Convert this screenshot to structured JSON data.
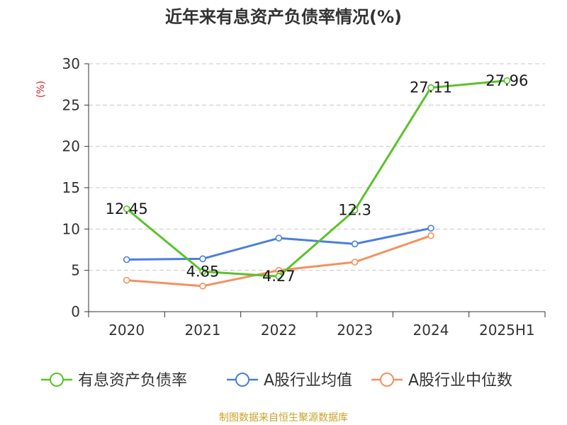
{
  "chart_data": {
    "type": "line",
    "title": "近年来有息资产负债率情况(%)",
    "ylabel": "(%)",
    "xlabel": "",
    "categories": [
      "2020",
      "2021",
      "2022",
      "2023",
      "2024",
      "2025H1"
    ],
    "ylim": [
      0,
      30
    ],
    "yticks": [
      0,
      5,
      10,
      15,
      20,
      25,
      30
    ],
    "grid": true,
    "legend_position": "bottom",
    "series": [
      {
        "name": "有息资产负债率",
        "color": "#5ac229",
        "values": [
          12.45,
          4.85,
          4.27,
          12.3,
          27.11,
          27.96
        ],
        "labels": [
          "12.45",
          "4.85",
          "4.27",
          "12.3",
          "27.11",
          "27.96"
        ]
      },
      {
        "name": "A股行业均值",
        "color": "#4a7fdc",
        "values": [
          6.3,
          6.4,
          8.9,
          8.2,
          10.1,
          null
        ]
      },
      {
        "name": "A股行业中位数",
        "color": "#f3915f",
        "values": [
          3.8,
          3.1,
          5.0,
          6.0,
          9.2,
          null
        ]
      }
    ],
    "source": "制图数据来自恒生聚源数据库",
    "source_color": "#c9a227",
    "ylabel_color": "#e02020"
  }
}
